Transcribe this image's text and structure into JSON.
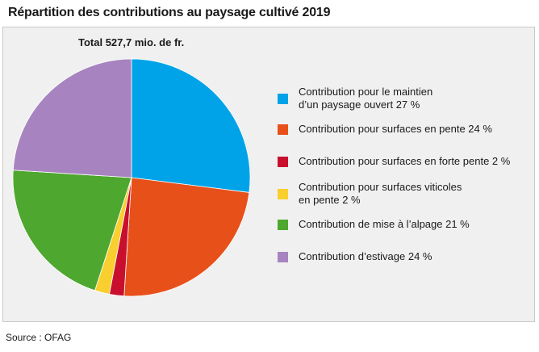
{
  "title": "Répartition des contributions au paysage cultivé 2019",
  "total_label": "Total 527,7 mio. de fr.",
  "source": "Source : OFAG",
  "chart_data": {
    "type": "pie",
    "title": "Répartition des contributions au paysage cultivé 2019",
    "subtitle": "Total 527,7 mio. de fr.",
    "legend_placement": "right",
    "start_angle": "12 o'clock, clockwise",
    "slices": [
      {
        "label": "Contribution pour le maintien\nd’un paysage ouvert  27 %",
        "value": 27,
        "color": "#00a3e8"
      },
      {
        "label": "Contribution pour surfaces en pente  24 %",
        "value": 24,
        "color": "#e8501a"
      },
      {
        "label": "Contribution pour surfaces en forte pente  2 %",
        "value": 2,
        "color": "#c8102e"
      },
      {
        "label": "Contribution pour surfaces viticoles\nen pente  2 %",
        "value": 2,
        "color": "#f9cf2f"
      },
      {
        "label": "Contribution de mise à l’alpage  21 %",
        "value": 21,
        "color": "#4ea72e"
      },
      {
        "label": "Contribution d’estivage  24 %",
        "value": 24,
        "color": "#a784bf"
      }
    ]
  }
}
